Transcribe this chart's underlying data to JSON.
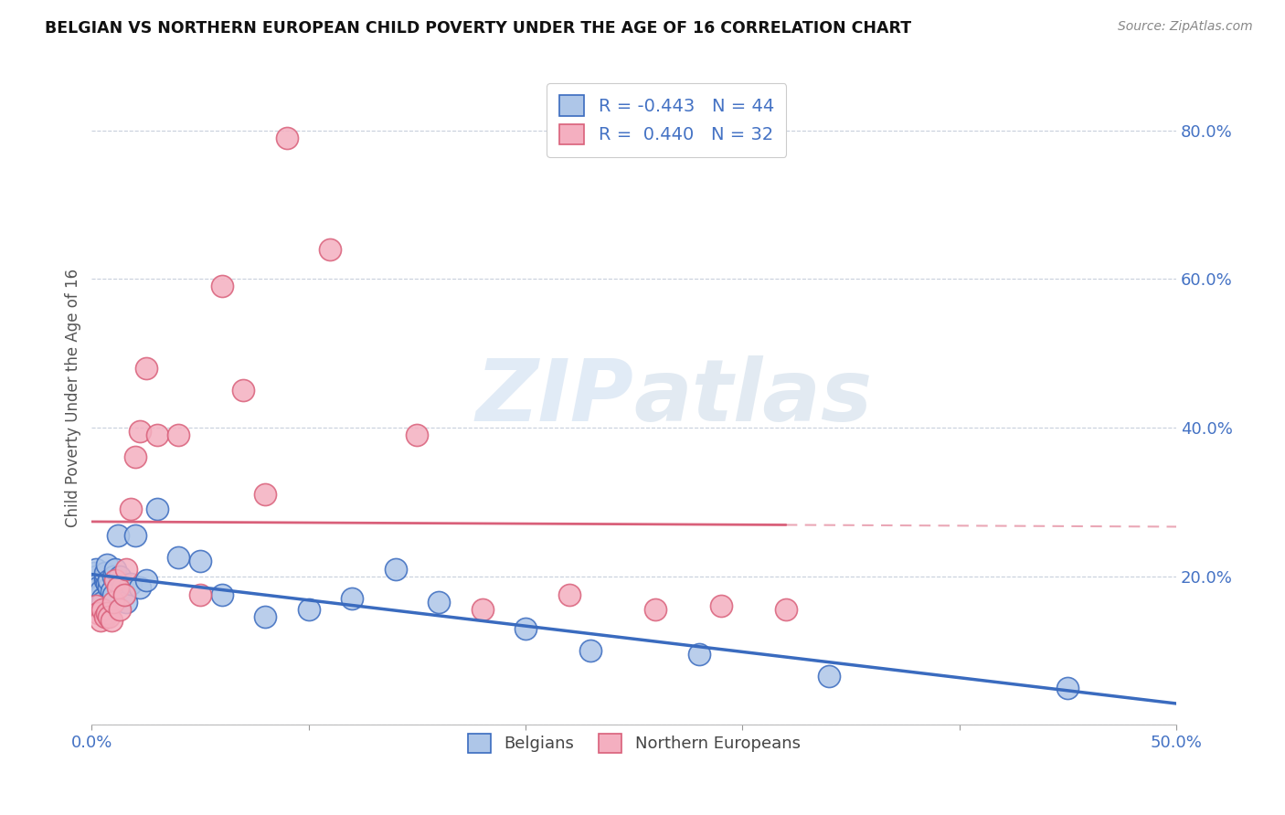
{
  "title": "BELGIAN VS NORTHERN EUROPEAN CHILD POVERTY UNDER THE AGE OF 16 CORRELATION CHART",
  "source": "Source: ZipAtlas.com",
  "ylabel": "Child Poverty Under the Age of 16",
  "xlim": [
    0.0,
    0.5
  ],
  "ylim": [
    0.0,
    0.88
  ],
  "belgian_color": "#aec6e8",
  "northern_color": "#f4afc0",
  "belgian_edge": "#3a6bbf",
  "northern_edge": "#d9607a",
  "R_belgian": -0.443,
  "N_belgian": 44,
  "R_northern": 0.44,
  "N_northern": 32,
  "belgian_x": [
    0.001,
    0.001,
    0.002,
    0.002,
    0.003,
    0.003,
    0.004,
    0.004,
    0.005,
    0.005,
    0.006,
    0.006,
    0.006,
    0.007,
    0.007,
    0.008,
    0.008,
    0.009,
    0.01,
    0.01,
    0.011,
    0.012,
    0.013,
    0.014,
    0.015,
    0.016,
    0.018,
    0.02,
    0.022,
    0.025,
    0.03,
    0.04,
    0.05,
    0.06,
    0.08,
    0.1,
    0.12,
    0.14,
    0.16,
    0.2,
    0.23,
    0.28,
    0.34,
    0.45
  ],
  "belgian_y": [
    0.195,
    0.205,
    0.2,
    0.21,
    0.19,
    0.185,
    0.175,
    0.18,
    0.17,
    0.165,
    0.195,
    0.2,
    0.205,
    0.215,
    0.19,
    0.185,
    0.195,
    0.18,
    0.2,
    0.175,
    0.21,
    0.255,
    0.2,
    0.185,
    0.175,
    0.165,
    0.19,
    0.255,
    0.185,
    0.195,
    0.29,
    0.225,
    0.22,
    0.175,
    0.145,
    0.155,
    0.17,
    0.21,
    0.165,
    0.13,
    0.1,
    0.095,
    0.065,
    0.05
  ],
  "northern_x": [
    0.002,
    0.003,
    0.004,
    0.005,
    0.006,
    0.007,
    0.008,
    0.009,
    0.01,
    0.011,
    0.012,
    0.013,
    0.015,
    0.016,
    0.018,
    0.02,
    0.022,
    0.025,
    0.03,
    0.04,
    0.05,
    0.06,
    0.07,
    0.08,
    0.09,
    0.11,
    0.15,
    0.18,
    0.22,
    0.26,
    0.29,
    0.32
  ],
  "northern_y": [
    0.16,
    0.15,
    0.14,
    0.155,
    0.145,
    0.15,
    0.145,
    0.14,
    0.165,
    0.195,
    0.185,
    0.155,
    0.175,
    0.21,
    0.29,
    0.36,
    0.395,
    0.48,
    0.39,
    0.39,
    0.175,
    0.59,
    0.45,
    0.31,
    0.79,
    0.64,
    0.39,
    0.155,
    0.175,
    0.155,
    0.16,
    0.155
  ],
  "watermark_zip": "ZIP",
  "watermark_atlas": "atlas",
  "legend_labels": [
    "Belgians",
    "Northern Europeans"
  ]
}
